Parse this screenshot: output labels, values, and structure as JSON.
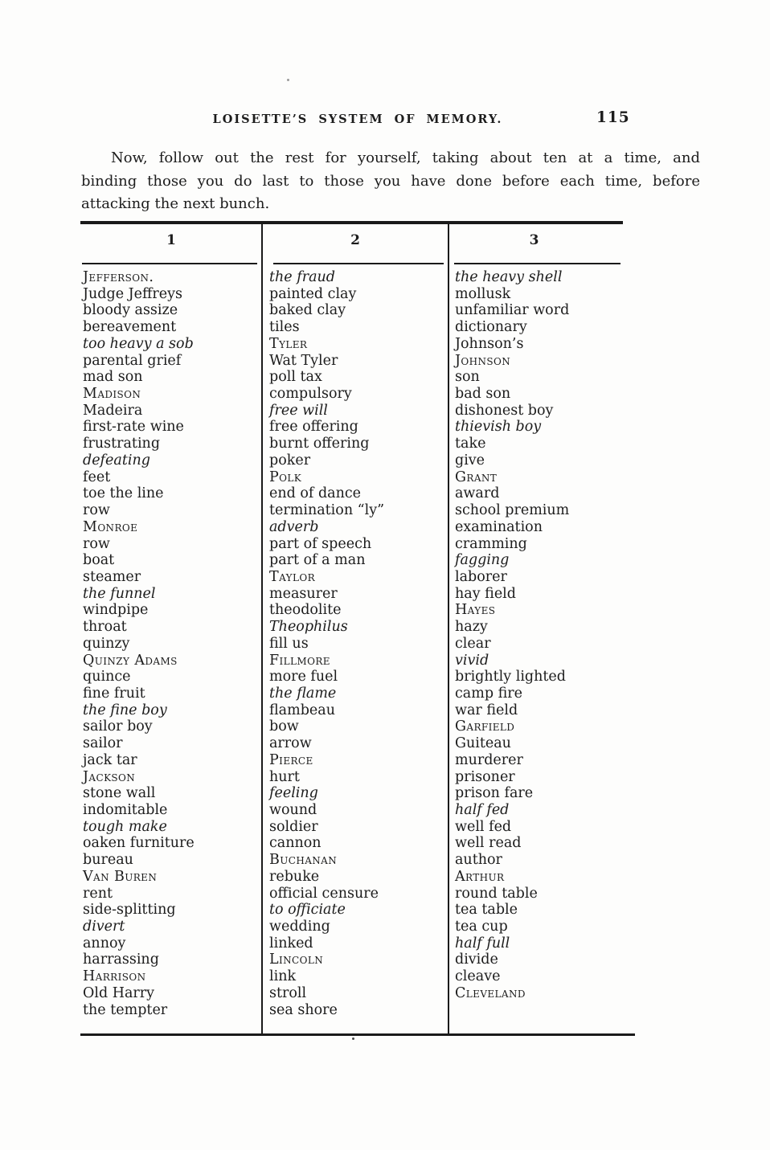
{
  "page": {
    "running_header": "LOISETTE’S SYSTEM OF MEMORY.",
    "page_number": "115",
    "paragraph_lines": [
      "Now, follow out the rest for yourself, taking about ten at a time, and",
      "binding those you do last to those you have done before each time, before",
      "attacking the next bunch."
    ]
  },
  "table": {
    "headers": [
      "1",
      "2",
      "3"
    ],
    "columns": [
      {
        "entries": [
          {
            "text": "Jefferson.",
            "style": "smallcaps"
          },
          {
            "text": "Judge Jeffreys",
            "style": "plain"
          },
          {
            "text": "bloody assize",
            "style": "plain"
          },
          {
            "text": "bereavement",
            "style": "plain"
          },
          {
            "text": "too heavy a sob",
            "style": "italic"
          },
          {
            "text": "parental grief",
            "style": "plain"
          },
          {
            "text": "mad son",
            "style": "plain"
          },
          {
            "text": "Madison",
            "style": "smallcaps"
          },
          {
            "text": "Madeira",
            "style": "plain"
          },
          {
            "text": "first-rate wine",
            "style": "plain"
          },
          {
            "text": "frustrating",
            "style": "plain"
          },
          {
            "text": "defeating",
            "style": "italic"
          },
          {
            "text": "feet",
            "style": "plain"
          },
          {
            "text": "toe the line",
            "style": "plain"
          },
          {
            "text": "row",
            "style": "plain"
          },
          {
            "text": "Monroe",
            "style": "smallcaps"
          },
          {
            "text": "row",
            "style": "plain"
          },
          {
            "text": "boat",
            "style": "plain"
          },
          {
            "text": "steamer",
            "style": "plain"
          },
          {
            "text": "the funnel",
            "style": "italic"
          },
          {
            "text": "windpipe",
            "style": "plain"
          },
          {
            "text": "throat",
            "style": "plain"
          },
          {
            "text": "quinzy",
            "style": "plain"
          },
          {
            "text": "Quinzy Adams",
            "style": "smallcaps"
          },
          {
            "text": "quince",
            "style": "plain"
          },
          {
            "text": "fine fruit",
            "style": "plain"
          },
          {
            "text": "the fine boy",
            "style": "italic"
          },
          {
            "text": "sailor boy",
            "style": "plain"
          },
          {
            "text": "sailor",
            "style": "plain"
          },
          {
            "text": "jack tar",
            "style": "plain"
          },
          {
            "text": "Jackson",
            "style": "smallcaps"
          },
          {
            "text": "stone wall",
            "style": "plain"
          },
          {
            "text": "indomitable",
            "style": "plain"
          },
          {
            "text": "tough make",
            "style": "italic"
          },
          {
            "text": "oaken furniture",
            "style": "plain"
          },
          {
            "text": "bureau",
            "style": "plain"
          },
          {
            "text": "Van Buren",
            "style": "smallcaps"
          },
          {
            "text": "rent",
            "style": "plain"
          },
          {
            "text": "side-splitting",
            "style": "plain"
          },
          {
            "text": "divert",
            "style": "italic"
          },
          {
            "text": "annoy",
            "style": "plain"
          },
          {
            "text": "harrassing",
            "style": "plain"
          },
          {
            "text": "Harrison",
            "style": "smallcaps"
          },
          {
            "text": "Old Harry",
            "style": "plain"
          },
          {
            "text": "the tempter",
            "style": "plain"
          }
        ]
      },
      {
        "entries": [
          {
            "text": "the fraud",
            "style": "italic"
          },
          {
            "text": "painted clay",
            "style": "plain"
          },
          {
            "text": "baked clay",
            "style": "plain"
          },
          {
            "text": "tiles",
            "style": "plain"
          },
          {
            "text": "Tyler",
            "style": "smallcaps"
          },
          {
            "text": "Wat Tyler",
            "style": "plain"
          },
          {
            "text": "poll tax",
            "style": "plain"
          },
          {
            "text": "compulsory",
            "style": "plain"
          },
          {
            "text": "free will",
            "style": "italic"
          },
          {
            "text": "free offering",
            "style": "plain"
          },
          {
            "text": "burnt offering",
            "style": "plain"
          },
          {
            "text": "poker",
            "style": "plain"
          },
          {
            "text": "Polk",
            "style": "smallcaps"
          },
          {
            "text": "end of dance",
            "style": "plain"
          },
          {
            "text": "termination “ly”",
            "style": "plain"
          },
          {
            "text": "adverb",
            "style": "italic"
          },
          {
            "text": "part of speech",
            "style": "plain"
          },
          {
            "text": "part of a man",
            "style": "plain"
          },
          {
            "text": "Taylor",
            "style": "smallcaps"
          },
          {
            "text": "measurer",
            "style": "plain"
          },
          {
            "text": "theodolite",
            "style": "plain"
          },
          {
            "text": "Theophilus",
            "style": "italic"
          },
          {
            "text": "fill us",
            "style": "plain"
          },
          {
            "text": "Fillmore",
            "style": "smallcaps"
          },
          {
            "text": "more fuel",
            "style": "plain"
          },
          {
            "text": "the flame",
            "style": "italic"
          },
          {
            "text": "flambeau",
            "style": "plain"
          },
          {
            "text": "bow",
            "style": "plain"
          },
          {
            "text": "arrow",
            "style": "plain"
          },
          {
            "text": "Pierce",
            "style": "smallcaps"
          },
          {
            "text": "hurt",
            "style": "plain"
          },
          {
            "text": "feeling",
            "style": "italic"
          },
          {
            "text": "wound",
            "style": "plain"
          },
          {
            "text": "soldier",
            "style": "plain"
          },
          {
            "text": "cannon",
            "style": "plain"
          },
          {
            "text": "Buchanan",
            "style": "smallcaps"
          },
          {
            "text": "rebuke",
            "style": "plain"
          },
          {
            "text": "official censure",
            "style": "plain"
          },
          {
            "text": "to officiate",
            "style": "italic"
          },
          {
            "text": "wedding",
            "style": "plain"
          },
          {
            "text": "linked",
            "style": "plain"
          },
          {
            "text": "Lincoln",
            "style": "smallcaps"
          },
          {
            "text": "link",
            "style": "plain"
          },
          {
            "text": "stroll",
            "style": "plain"
          },
          {
            "text": "sea shore",
            "style": "plain"
          }
        ]
      },
      {
        "entries": [
          {
            "text": "the heavy shell",
            "style": "italic"
          },
          {
            "text": "mollusk",
            "style": "plain"
          },
          {
            "text": "unfamiliar word",
            "style": "plain"
          },
          {
            "text": "dictionary",
            "style": "plain"
          },
          {
            "text": "Johnson’s",
            "style": "plain"
          },
          {
            "text": "Johnson",
            "style": "smallcaps"
          },
          {
            "text": "son",
            "style": "plain"
          },
          {
            "text": "bad son",
            "style": "plain"
          },
          {
            "text": "dishonest boy",
            "style": "plain"
          },
          {
            "text": "thievish boy",
            "style": "italic"
          },
          {
            "text": "take",
            "style": "plain"
          },
          {
            "text": "give",
            "style": "plain"
          },
          {
            "text": "Grant",
            "style": "smallcaps"
          },
          {
            "text": "award",
            "style": "plain"
          },
          {
            "text": "school premium",
            "style": "plain"
          },
          {
            "text": "examination",
            "style": "plain"
          },
          {
            "text": "cramming",
            "style": "plain"
          },
          {
            "text": "fagging",
            "style": "italic"
          },
          {
            "text": "laborer",
            "style": "plain"
          },
          {
            "text": "hay field",
            "style": "plain"
          },
          {
            "text": "Hayes",
            "style": "smallcaps"
          },
          {
            "text": "hazy",
            "style": "plain"
          },
          {
            "text": "clear",
            "style": "plain"
          },
          {
            "text": "vivid",
            "style": "italic"
          },
          {
            "text": "brightly lighted",
            "style": "plain"
          },
          {
            "text": "camp fire",
            "style": "plain"
          },
          {
            "text": "war field",
            "style": "plain"
          },
          {
            "text": "Garfield",
            "style": "smallcaps"
          },
          {
            "text": "Guiteau",
            "style": "plain"
          },
          {
            "text": "murderer",
            "style": "plain"
          },
          {
            "text": "prisoner",
            "style": "plain"
          },
          {
            "text": "prison fare",
            "style": "plain"
          },
          {
            "text": "half fed",
            "style": "italic"
          },
          {
            "text": "well fed",
            "style": "plain"
          },
          {
            "text": "well read",
            "style": "plain"
          },
          {
            "text": "author",
            "style": "plain"
          },
          {
            "text": "Arthur",
            "style": "smallcaps"
          },
          {
            "text": "round table",
            "style": "plain"
          },
          {
            "text": "tea table",
            "style": "plain"
          },
          {
            "text": "tea cup",
            "style": "plain"
          },
          {
            "text": "half full",
            "style": "italic"
          },
          {
            "text": "divide",
            "style": "plain"
          },
          {
            "text": "cleave",
            "style": "plain"
          },
          {
            "text": "Cleveland",
            "style": "smallcaps"
          }
        ]
      }
    ]
  }
}
